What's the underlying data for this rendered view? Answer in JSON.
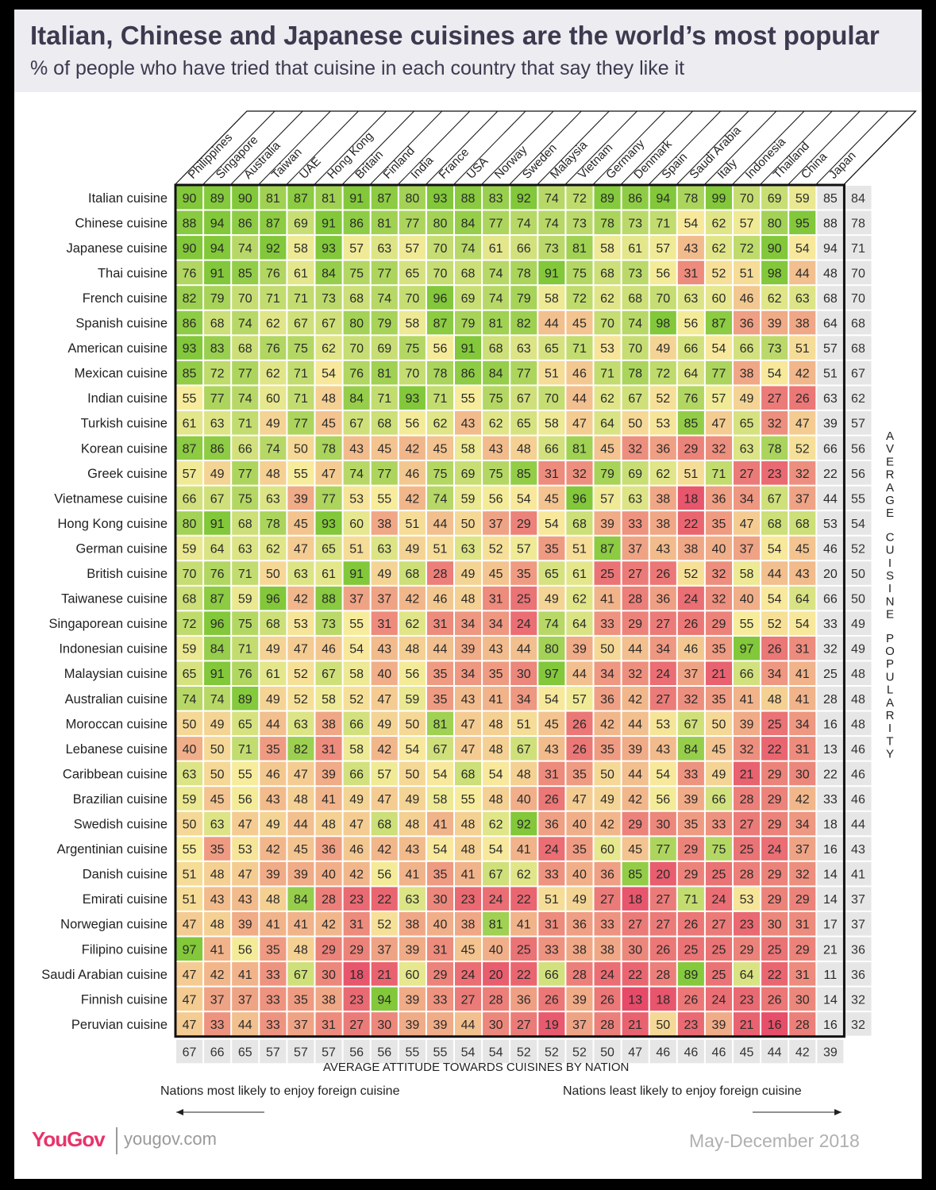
{
  "title": "Italian, Chinese and Japanese cuisines are the world’s most popular",
  "subtitle": "% of people who have tried that cuisine in each country that say they like it",
  "footer": {
    "x_title": "AVERAGE ATTITUDE TOWARDS CUISINES BY NATION",
    "left_note": "Nations most likely to enjoy foreign cuisine",
    "right_note": "Nations least likely to enjoy foreign cuisine",
    "logo": "YouGov",
    "url": "yougov.com",
    "date": "May-December 2018"
  },
  "side_label": "AVERAGE CUISINE POPULARITY",
  "colors": {
    "high": "#82c83a",
    "mid": "#f7ec9c",
    "low": "#e64a68",
    "avg_bg": "#e6e6e6",
    "border": "#111111"
  },
  "chart_data": {
    "type": "heatmap",
    "columns": [
      "Philippines",
      "Singapore",
      "Australia",
      "Taiwan",
      "UAE",
      "Hong Kong",
      "Britain",
      "Finland",
      "India",
      "France",
      "USA",
      "Norway",
      "Sweden",
      "Malaysia",
      "Vietnam",
      "Germany",
      "Denmark",
      "Spain",
      "Saudi Arabia",
      "Italy",
      "Indonesia",
      "Thailand",
      "China",
      "Japan"
    ],
    "rows": [
      "Italian cuisine",
      "Chinese cuisine",
      "Japanese cuisine",
      "Thai cuisine",
      "French cuisine",
      "Spanish cuisine",
      "American cuisine",
      "Mexican cuisine",
      "Indian cuisine",
      "Turkish cuisine",
      "Korean cuisine",
      "Greek cuisine",
      "Vietnamese cuisine",
      "Hong Kong cuisine",
      "German cuisine",
      "British cuisine",
      "Taiwanese cuisine",
      "Singaporean cuisine",
      "Indonesian cuisine",
      "Malaysian cuisine",
      "Australian cuisine",
      "Moroccan cuisine",
      "Lebanese cuisine",
      "Caribbean cuisine",
      "Brazilian cuisine",
      "Swedish cuisine",
      "Argentinian cuisine",
      "Danish cuisine",
      "Emirati cuisine",
      "Norwegian cuisine",
      "Filipino cuisine",
      "Saudi Arabian cuisine",
      "Finnish cuisine",
      "Peruvian cuisine"
    ],
    "values": [
      [
        90,
        89,
        90,
        81,
        87,
        81,
        91,
        87,
        80,
        93,
        88,
        83,
        92,
        74,
        72,
        89,
        86,
        94,
        78,
        99,
        70,
        69,
        59,
        85
      ],
      [
        88,
        94,
        86,
        87,
        69,
        91,
        86,
        81,
        77,
        80,
        84,
        77,
        74,
        74,
        73,
        78,
        73,
        71,
        54,
        62,
        57,
        80,
        95,
        88
      ],
      [
        90,
        94,
        74,
        92,
        58,
        93,
        57,
        63,
        57,
        70,
        74,
        61,
        66,
        73,
        81,
        58,
        61,
        57,
        43,
        62,
        72,
        90,
        54,
        94
      ],
      [
        76,
        91,
        85,
        76,
        61,
        84,
        75,
        77,
        65,
        70,
        68,
        74,
        78,
        91,
        75,
        68,
        73,
        56,
        31,
        52,
        51,
        98,
        44,
        48
      ],
      [
        82,
        79,
        70,
        71,
        71,
        73,
        68,
        74,
        70,
        96,
        69,
        74,
        79,
        58,
        72,
        62,
        68,
        70,
        63,
        60,
        46,
        62,
        63,
        68
      ],
      [
        86,
        68,
        74,
        62,
        67,
        67,
        80,
        79,
        58,
        87,
        79,
        81,
        82,
        44,
        45,
        70,
        74,
        98,
        56,
        87,
        36,
        39,
        38,
        64
      ],
      [
        93,
        83,
        68,
        76,
        75,
        62,
        70,
        69,
        75,
        56,
        91,
        68,
        63,
        65,
        71,
        53,
        70,
        49,
        66,
        54,
        66,
        73,
        51,
        57
      ],
      [
        85,
        72,
        77,
        62,
        71,
        54,
        76,
        81,
        70,
        78,
        86,
        84,
        77,
        51,
        46,
        71,
        78,
        72,
        64,
        77,
        38,
        54,
        42,
        51
      ],
      [
        55,
        77,
        74,
        60,
        71,
        48,
        84,
        71,
        93,
        71,
        55,
        75,
        67,
        70,
        44,
        62,
        67,
        52,
        76,
        57,
        49,
        27,
        26,
        63
      ],
      [
        61,
        63,
        71,
        49,
        77,
        45,
        67,
        68,
        56,
        62,
        43,
        62,
        65,
        58,
        47,
        64,
        50,
        53,
        85,
        47,
        65,
        32,
        47,
        39
      ],
      [
        87,
        86,
        66,
        74,
        50,
        78,
        43,
        45,
        42,
        45,
        58,
        43,
        48,
        66,
        81,
        45,
        32,
        36,
        29,
        32,
        63,
        78,
        52,
        66
      ],
      [
        57,
        49,
        77,
        48,
        55,
        47,
        74,
        77,
        46,
        75,
        69,
        75,
        85,
        31,
        32,
        79,
        69,
        62,
        51,
        71,
        27,
        23,
        32,
        22
      ],
      [
        66,
        67,
        75,
        63,
        39,
        77,
        53,
        55,
        42,
        74,
        59,
        56,
        54,
        45,
        96,
        57,
        63,
        38,
        18,
        36,
        34,
        67,
        37,
        44
      ],
      [
        80,
        91,
        68,
        78,
        45,
        93,
        60,
        38,
        51,
        44,
        50,
        37,
        29,
        54,
        68,
        39,
        33,
        38,
        22,
        35,
        47,
        68,
        68,
        53
      ],
      [
        59,
        64,
        63,
        62,
        47,
        65,
        51,
        63,
        49,
        51,
        63,
        52,
        57,
        35,
        51,
        87,
        37,
        43,
        38,
        40,
        37,
        54,
        45,
        46
      ],
      [
        70,
        76,
        71,
        50,
        63,
        61,
        91,
        49,
        68,
        28,
        49,
        45,
        35,
        65,
        61,
        25,
        27,
        26,
        52,
        32,
        58,
        44,
        43,
        20
      ],
      [
        68,
        87,
        59,
        96,
        42,
        88,
        37,
        37,
        42,
        46,
        48,
        31,
        25,
        49,
        62,
        41,
        28,
        36,
        24,
        32,
        40,
        54,
        64,
        66
      ],
      [
        72,
        96,
        75,
        68,
        53,
        73,
        55,
        31,
        62,
        31,
        34,
        34,
        24,
        74,
        64,
        33,
        29,
        27,
        26,
        29,
        55,
        52,
        54,
        33
      ],
      [
        59,
        84,
        71,
        49,
        47,
        46,
        54,
        43,
        48,
        44,
        39,
        43,
        44,
        80,
        39,
        50,
        44,
        34,
        46,
        35,
        97,
        26,
        31,
        32
      ],
      [
        65,
        91,
        76,
        61,
        52,
        67,
        58,
        40,
        56,
        35,
        34,
        35,
        30,
        97,
        44,
        34,
        32,
        24,
        37,
        21,
        66,
        34,
        41,
        25
      ],
      [
        74,
        74,
        89,
        49,
        52,
        58,
        52,
        47,
        59,
        35,
        43,
        41,
        34,
        54,
        57,
        36,
        42,
        27,
        32,
        35,
        41,
        48,
        41,
        28
      ],
      [
        50,
        49,
        65,
        44,
        63,
        38,
        66,
        49,
        50,
        81,
        47,
        48,
        51,
        45,
        26,
        42,
        44,
        53,
        67,
        50,
        39,
        25,
        34,
        16
      ],
      [
        40,
        50,
        71,
        35,
        82,
        31,
        58,
        42,
        54,
        67,
        47,
        48,
        67,
        43,
        26,
        35,
        39,
        43,
        84,
        45,
        32,
        22,
        31,
        13
      ],
      [
        63,
        50,
        55,
        46,
        47,
        39,
        66,
        57,
        50,
        54,
        68,
        54,
        48,
        31,
        35,
        50,
        44,
        54,
        33,
        49,
        21,
        29,
        30,
        22
      ],
      [
        59,
        45,
        56,
        43,
        48,
        41,
        49,
        47,
        49,
        58,
        55,
        48,
        40,
        26,
        47,
        49,
        42,
        56,
        39,
        66,
        28,
        29,
        42,
        33
      ],
      [
        50,
        63,
        47,
        49,
        44,
        48,
        47,
        68,
        48,
        41,
        48,
        62,
        92,
        36,
        40,
        42,
        29,
        30,
        35,
        33,
        27,
        29,
        34,
        18
      ],
      [
        55,
        35,
        53,
        42,
        45,
        36,
        46,
        42,
        43,
        54,
        48,
        54,
        41,
        24,
        35,
        60,
        45,
        77,
        29,
        75,
        25,
        24,
        37,
        16
      ],
      [
        51,
        48,
        47,
        39,
        39,
        40,
        42,
        56,
        41,
        35,
        41,
        67,
        62,
        33,
        40,
        36,
        85,
        20,
        29,
        25,
        28,
        29,
        32,
        14
      ],
      [
        51,
        43,
        43,
        48,
        84,
        28,
        23,
        22,
        63,
        30,
        23,
        24,
        22,
        51,
        49,
        27,
        18,
        27,
        71,
        24,
        53,
        29,
        29,
        14
      ],
      [
        47,
        48,
        39,
        41,
        41,
        42,
        31,
        52,
        38,
        40,
        38,
        81,
        41,
        31,
        36,
        33,
        27,
        27,
        26,
        27,
        23,
        30,
        31,
        17
      ],
      [
        97,
        41,
        56,
        35,
        48,
        29,
        29,
        37,
        39,
        31,
        45,
        40,
        25,
        33,
        38,
        38,
        30,
        26,
        25,
        25,
        29,
        25,
        29,
        21
      ],
      [
        47,
        42,
        41,
        33,
        67,
        30,
        18,
        21,
        60,
        29,
        24,
        20,
        22,
        66,
        28,
        24,
        22,
        28,
        89,
        25,
        64,
        22,
        31,
        11
      ],
      [
        47,
        37,
        37,
        33,
        35,
        38,
        23,
        94,
        39,
        33,
        27,
        28,
        36,
        26,
        39,
        26,
        13,
        18,
        26,
        24,
        23,
        26,
        30,
        14
      ],
      [
        47,
        33,
        44,
        33,
        37,
        31,
        27,
        30,
        39,
        39,
        44,
        30,
        27,
        19,
        37,
        28,
        21,
        50,
        23,
        39,
        21,
        16,
        28,
        16
      ]
    ],
    "row_averages": [
      84,
      78,
      71,
      70,
      70,
      68,
      68,
      67,
      62,
      57,
      56,
      56,
      55,
      54,
      52,
      50,
      50,
      49,
      49,
      48,
      48,
      48,
      46,
      46,
      46,
      44,
      43,
      41,
      37,
      37,
      36,
      36,
      32,
      32
    ],
    "column_averages": [
      67,
      66,
      65,
      57,
      57,
      57,
      56,
      56,
      55,
      55,
      54,
      54,
      52,
      52,
      52,
      50,
      47,
      46,
      46,
      46,
      45,
      44,
      42,
      39
    ]
  }
}
